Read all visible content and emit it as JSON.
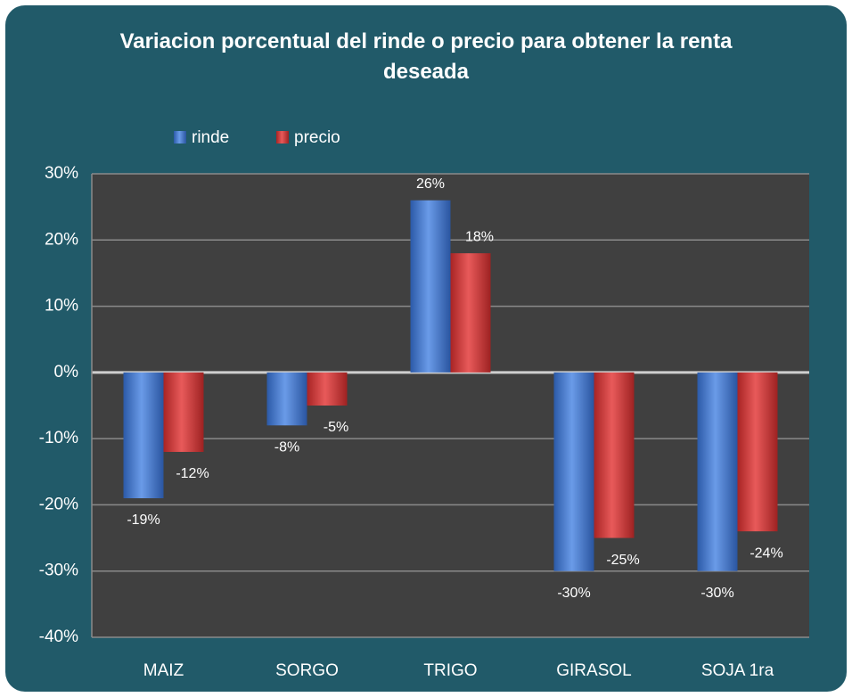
{
  "chart_data": {
    "type": "bar",
    "title": "Variacion porcentual del rinde o precio para obtener la renta deseada",
    "categories": [
      "MAIZ",
      "SORGO",
      "TRIGO",
      "GIRASOL",
      "SOJA 1ra"
    ],
    "series": [
      {
        "name": "rinde",
        "color": "#4a7dd4",
        "values": [
          -19,
          -8,
          26,
          -30,
          -30
        ],
        "value_labels": [
          "-19%",
          "-8%",
          "26%",
          "-30%",
          "-30%"
        ]
      },
      {
        "name": "precio",
        "color": "#d83c3c",
        "values": [
          -12,
          -5,
          18,
          -25,
          -24
        ],
        "value_labels": [
          "-12%",
          "-5%",
          "18%",
          "-25%",
          "-24%"
        ]
      }
    ],
    "ylim": [
      -40,
      30
    ],
    "yticks": [
      {
        "value": -40,
        "label": "-40%"
      },
      {
        "value": -30,
        "label": "-30%"
      },
      {
        "value": -20,
        "label": "-20%"
      },
      {
        "value": -10,
        "label": "-10%"
      },
      {
        "value": 0,
        "label": "0%"
      },
      {
        "value": 10,
        "label": "10%"
      },
      {
        "value": 20,
        "label": "20%"
      },
      {
        "value": 30,
        "label": "30%"
      }
    ],
    "grid": true,
    "legend": "top"
  }
}
